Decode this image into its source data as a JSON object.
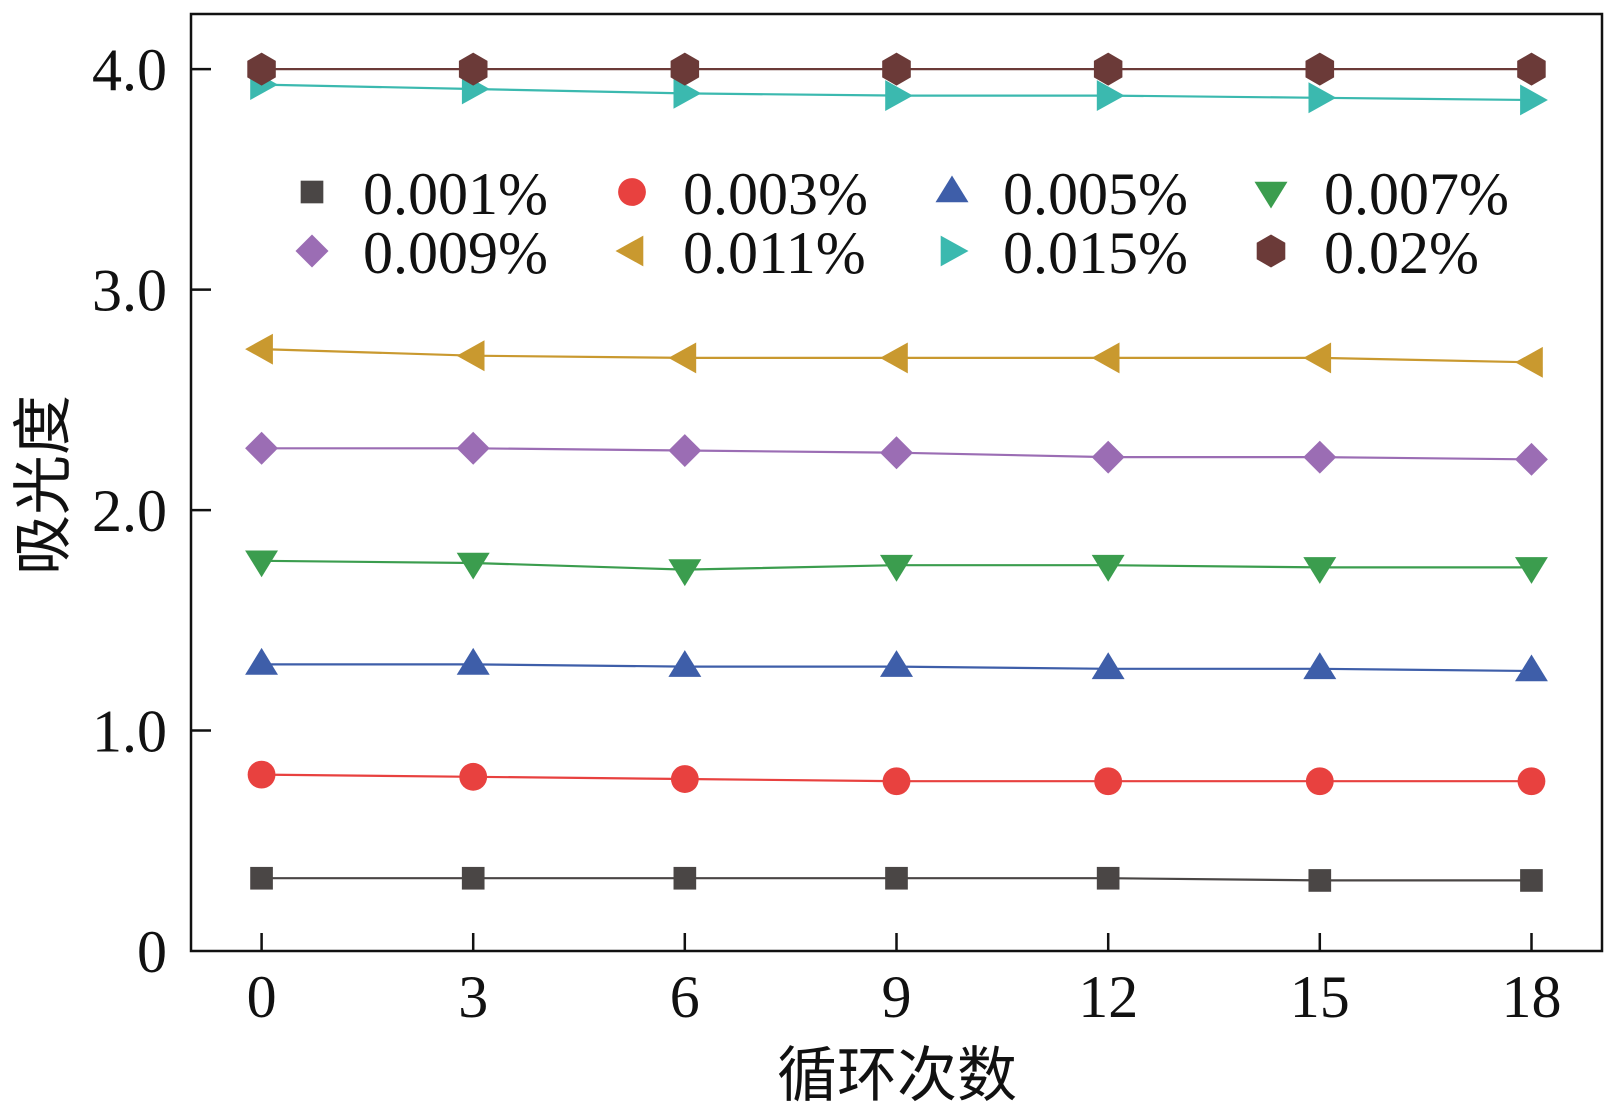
{
  "chart_data": {
    "type": "line",
    "xlabel": "循环次数",
    "ylabel": "吸光度",
    "x": [
      0,
      3,
      6,
      9,
      12,
      15,
      18
    ],
    "x_ticks": [
      0,
      3,
      6,
      9,
      12,
      15,
      18
    ],
    "x_tick_labels": [
      "0",
      "3",
      "6",
      "9",
      "12",
      "15",
      "18"
    ],
    "y_ticks": [
      0,
      1.0,
      2.0,
      3.0,
      4.0
    ],
    "y_tick_labels": [
      "0",
      "1.0",
      "2.0",
      "3.0",
      "4.0"
    ],
    "xlim": [
      -1,
      19
    ],
    "ylim": [
      0,
      4.25
    ],
    "grid": false,
    "legend": "upper-center",
    "series": [
      {
        "name": "0.001%",
        "marker": "square",
        "color": "#4a4645",
        "values": [
          0.33,
          0.33,
          0.33,
          0.33,
          0.33,
          0.32,
          0.32
        ]
      },
      {
        "name": "0.003%",
        "marker": "circle",
        "color": "#e8413f",
        "values": [
          0.8,
          0.79,
          0.78,
          0.77,
          0.77,
          0.77,
          0.77
        ]
      },
      {
        "name": "0.005%",
        "marker": "triangle-up",
        "color": "#3e5ea9",
        "values": [
          1.3,
          1.3,
          1.29,
          1.29,
          1.28,
          1.28,
          1.27
        ]
      },
      {
        "name": "0.007%",
        "marker": "triangle-down",
        "color": "#3b9d4e",
        "values": [
          1.77,
          1.76,
          1.73,
          1.75,
          1.75,
          1.74,
          1.74
        ]
      },
      {
        "name": "0.009%",
        "marker": "diamond",
        "color": "#9b6db4",
        "values": [
          2.28,
          2.28,
          2.27,
          2.26,
          2.24,
          2.24,
          2.23
        ]
      },
      {
        "name": "0.011%",
        "marker": "triangle-left",
        "color": "#c9992f",
        "values": [
          2.73,
          2.7,
          2.69,
          2.69,
          2.69,
          2.69,
          2.67
        ]
      },
      {
        "name": "0.015%",
        "marker": "triangle-right",
        "color": "#3bb9af",
        "values": [
          3.93,
          3.91,
          3.89,
          3.88,
          3.88,
          3.87,
          3.86
        ]
      },
      {
        "name": "0.02%",
        "marker": "hexagon",
        "color": "#6b3a38",
        "values": [
          4.0,
          4.0,
          4.0,
          4.0,
          4.0,
          4.0,
          4.0
        ]
      }
    ]
  }
}
